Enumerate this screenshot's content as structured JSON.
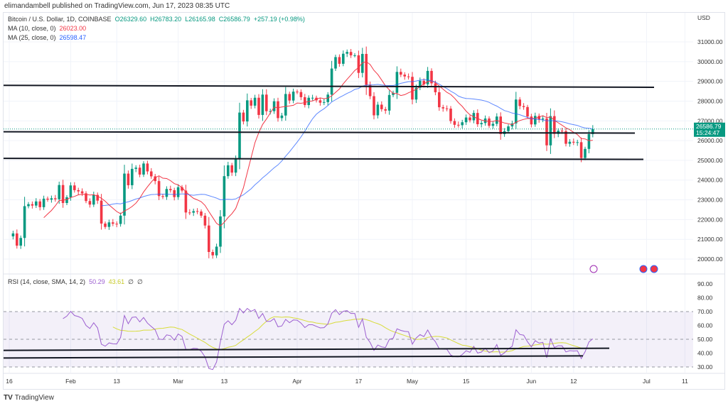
{
  "publish_line": "elimandambell published on TradingView.com, Jun 17, 2023 08:35 UTC",
  "legend": {
    "symbol": "Bitcoin / U.S. Dollar, 1D, COINBASE",
    "open": "O26329.60",
    "high": "H26783.20",
    "low": "L26165.98",
    "close": "C26586.79",
    "change": "+257.19 (+0.98%)",
    "ma10_label": "MA (10, close, 0)",
    "ma10_value": "26023.00",
    "ma25_label": "MA (25, close, 0)",
    "ma25_value": "26598.47"
  },
  "rsi_legend": {
    "label": "RSI (14, close, SMA, 14, 2)",
    "rsi_value": "50.29",
    "sma_value": "43.61",
    "extra1": "∅",
    "extra2": "∅"
  },
  "footer": {
    "logo": "TradingView"
  },
  "colors": {
    "up": "#089981",
    "down": "#f23645",
    "ma10": "#f23645",
    "ma25": "#2962ff",
    "rsi": "#9c5fd0",
    "rsi_sma": "#d8dc3a"
  },
  "chart_data": {
    "type": "candlestick",
    "currency_label": "USD",
    "price_axis": {
      "range": [
        19500,
        31500
      ],
      "ticks": [
        "31000.00",
        "30000.00",
        "29000.00",
        "28000.00",
        "27000.00",
        "26000.00",
        "25000.00",
        "24000.00",
        "23000.00",
        "22000.00",
        "21000.00",
        "20000.00"
      ]
    },
    "last_price_label": "26586.79",
    "countdown_label": "15:24:47",
    "x_start": "2023-01-16",
    "x_end": "2023-06-17",
    "x_ticks": [
      {
        "label": "16",
        "date": "2023-01-16"
      },
      {
        "label": "Feb",
        "date": "2023-02-01"
      },
      {
        "label": "13",
        "date": "2023-02-13"
      },
      {
        "label": "Mar",
        "date": "2023-03-01"
      },
      {
        "label": "13",
        "date": "2023-03-13"
      },
      {
        "label": "Apr",
        "date": "2023-04-01"
      },
      {
        "label": "17",
        "date": "2023-04-17"
      },
      {
        "label": "May",
        "date": "2023-05-01"
      },
      {
        "label": "15",
        "date": "2023-05-15"
      },
      {
        "label": "Jun",
        "date": "2023-06-01"
      },
      {
        "label": "12",
        "date": "2023-06-12"
      },
      {
        "label": "Jul",
        "date": "2023-07-01"
      },
      {
        "label": "11",
        "date": "2023-07-11"
      }
    ],
    "closes": [
      21150,
      21300,
      20680,
      21070,
      22680,
      22780,
      22710,
      22920,
      22630,
      23060,
      23010,
      23080,
      23030,
      23750,
      22840,
      23130,
      23730,
      23490,
      23430,
      23330,
      22940,
      22760,
      23250,
      22960,
      21800,
      21630,
      21860,
      21790,
      21780,
      22200,
      24330,
      23740,
      24570,
      24630,
      24280,
      24840,
      24440,
      24190,
      23950,
      23190,
      23150,
      23550,
      23490,
      23140,
      23640,
      23470,
      22360,
      22350,
      22430,
      22410,
      22200,
      21700,
      20360,
      20190,
      20630,
      22160,
      24200,
      24750,
      24380,
      25050,
      27420,
      26970,
      28040,
      27770,
      28170,
      27300,
      28330,
      27490,
      27490,
      27990,
      27140,
      27270,
      28360,
      28030,
      28480,
      28460,
      28200,
      27800,
      28170,
      28170,
      28040,
      27920,
      27950,
      28330,
      29650,
      30230,
      29890,
      30400,
      30490,
      30320,
      30320,
      29430,
      30390,
      28820,
      28250,
      27280,
      27820,
      27590,
      27520,
      28310,
      28420,
      29480,
      29340,
      29250,
      29230,
      28080,
      28680,
      29030,
      28850,
      29530,
      28900,
      28450,
      27690,
      27630,
      27620,
      26990,
      26800,
      26780,
      26930,
      27170,
      27030,
      27400,
      26830,
      26890,
      27120,
      26750,
      26850,
      27220,
      26330,
      26480,
      26720,
      26870,
      28080,
      27750,
      27700,
      27220,
      26820,
      27250,
      27070,
      27120,
      25760,
      27240,
      26340,
      26500,
      26480,
      25840,
      25940,
      25900,
      25920,
      25120,
      25580,
      26329.6,
      26586.79
    ],
    "last_candle": {
      "open": 26329.6,
      "high": 26783.2,
      "low": 26165.98,
      "close": 26586.79
    },
    "indicators": [
      {
        "name": "MA (10, close, 0)",
        "period": 10
      },
      {
        "name": "MA (25, close, 0)",
        "period": 25
      }
    ],
    "horizontal_lines_price": [
      {
        "from": 28800,
        "to": 28700
      },
      {
        "from": 26450,
        "to": 26380
      },
      {
        "from": 25100,
        "to": 25050
      }
    ],
    "rsi": {
      "period": 14,
      "sma_period": 14,
      "range": [
        28,
        92
      ],
      "ticks": [
        "90.00",
        "80.00",
        "70.00",
        "60.00",
        "50.00",
        "40.00",
        "30.00"
      ],
      "band": [
        30,
        70
      ],
      "mid": 50,
      "lines": [
        {
          "from": 42,
          "to": 43.5
        },
        {
          "from": 36.5,
          "to": 38
        }
      ]
    }
  }
}
